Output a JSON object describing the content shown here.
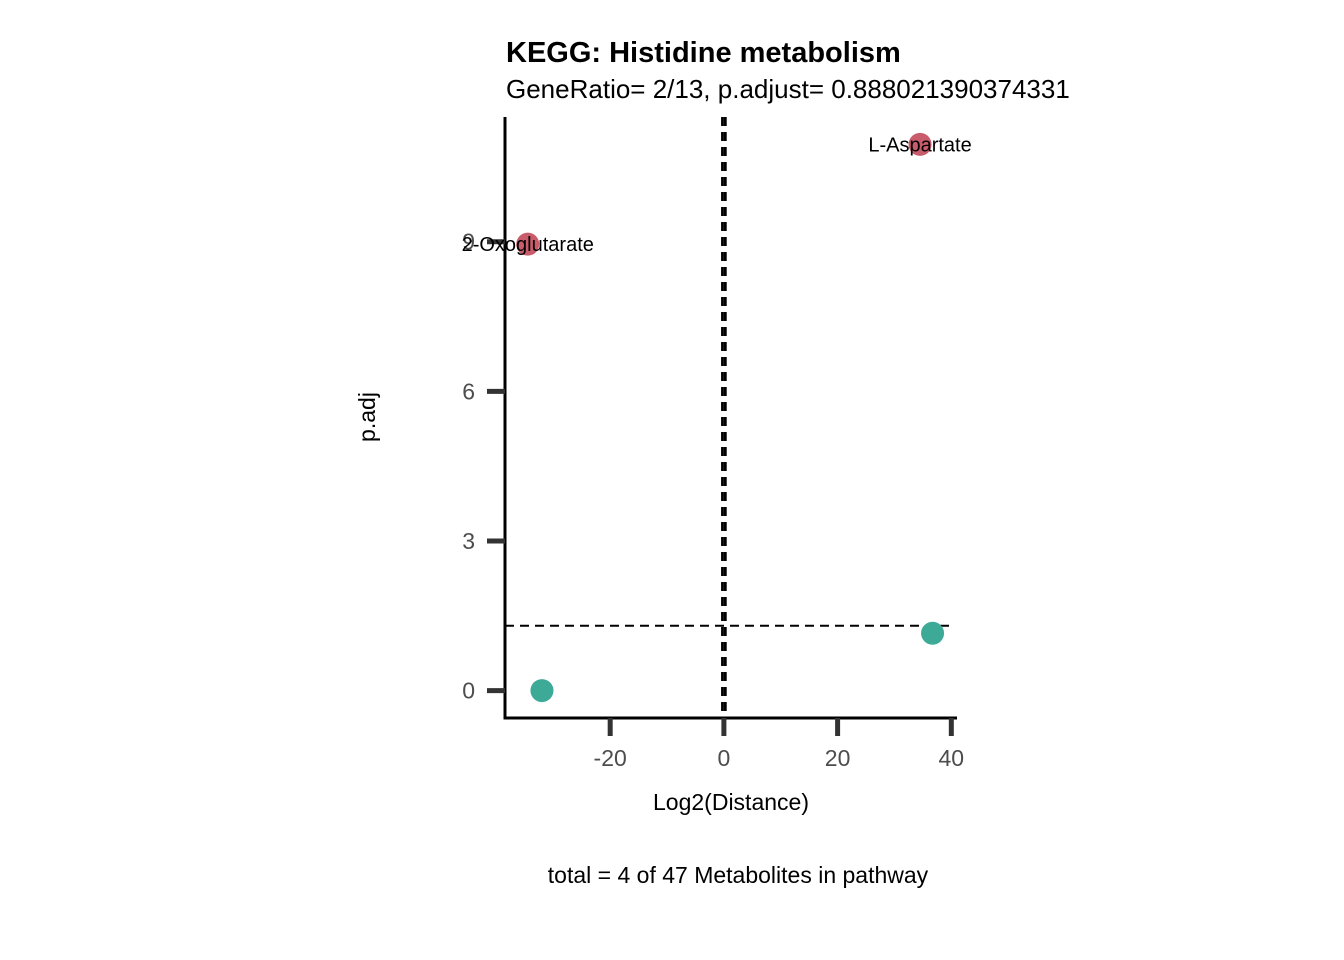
{
  "chart_data": {
    "type": "scatter",
    "title": "KEGG: Histidine metabolism",
    "subtitle": "GeneRatio= 2/13, p.adjust= 0.888021390374331",
    "xlabel": "Log2(Distance)",
    "ylabel": "p.adj",
    "caption": "total = 4 of 47 Metabolites in pathway",
    "xlim": [
      -38.5,
      41
    ],
    "ylim": [
      -0.55,
      11.5
    ],
    "x_ticks": [
      -20,
      0,
      20,
      40
    ],
    "x_tick_labels": [
      "-20",
      "0",
      "20",
      "40"
    ],
    "y_ticks": [
      0,
      3,
      6,
      9
    ],
    "y_tick_labels": [
      "0",
      "3",
      "6",
      "9"
    ],
    "vlines": [
      -0.25,
      0.25
    ],
    "hline": 1.3,
    "grid": false,
    "legend": "none",
    "colors": {
      "up": "#C95C6B",
      "nonsig": "#3DAA98",
      "axis": "#000000",
      "ticks": "#333333"
    },
    "points": [
      {
        "x": 34.5,
        "y": 10.95,
        "label": "L-Aspartate",
        "group": "up"
      },
      {
        "x": -34.5,
        "y": 8.95,
        "label": "2-Oxoglutarate",
        "group": "up"
      },
      {
        "x": 36.7,
        "y": 1.15,
        "label": "",
        "group": "nonsig"
      },
      {
        "x": -32.0,
        "y": 0.0,
        "label": "",
        "group": "nonsig"
      }
    ]
  }
}
